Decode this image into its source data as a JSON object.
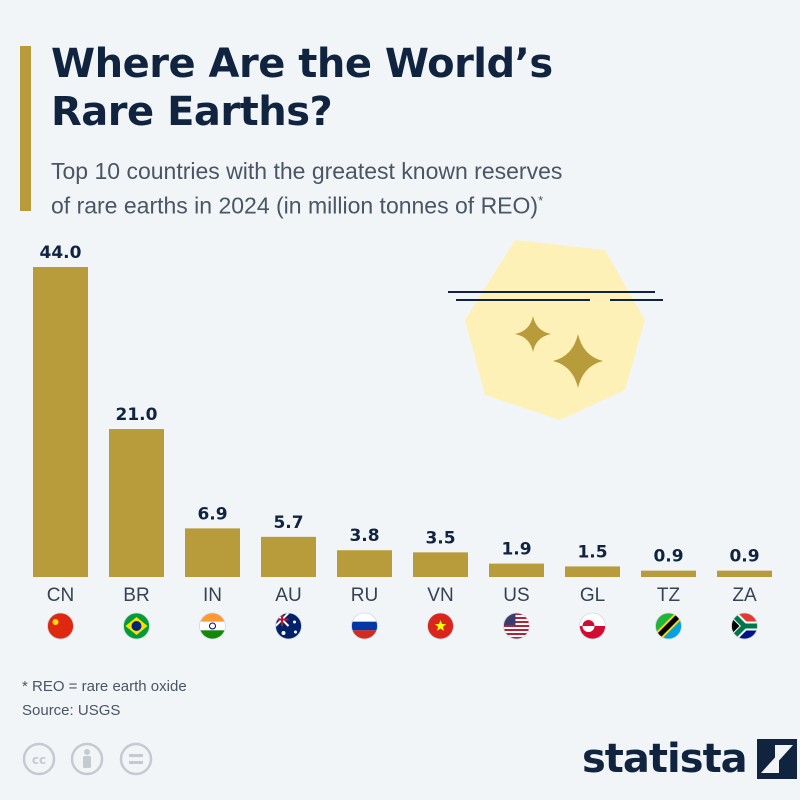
{
  "title_lines": [
    "Where Are the World’s",
    "Rare Earths?"
  ],
  "subtitle_lines": [
    "Top 10 countries with the greatest known reserves",
    "of rare earths in 2024 (in million tonnes of REO)"
  ],
  "subtitle_mark": "*",
  "colors": {
    "bar": "#b89b3a",
    "title": "#10243f",
    "background": "#f2f5f8",
    "illustration": "#fdf1b8"
  },
  "chart_data": {
    "type": "bar",
    "title": "",
    "xlabel": "",
    "ylabel": "",
    "categories": [
      "CN",
      "BR",
      "IN",
      "AU",
      "RU",
      "VN",
      "US",
      "GL",
      "TZ",
      "ZA"
    ],
    "values": [
      44.0,
      21.0,
      6.9,
      5.7,
      3.8,
      3.5,
      1.9,
      1.5,
      0.9,
      0.9
    ],
    "value_labels": [
      "44.0",
      "21.0",
      "6.9",
      "5.7",
      "3.8",
      "3.5",
      "1.9",
      "1.5",
      "0.9",
      "0.9"
    ],
    "ylim": [
      0,
      44
    ],
    "grid": false,
    "legend": "none",
    "flags": [
      "china-flag-icon",
      "brazil-flag-icon",
      "india-flag-icon",
      "australia-flag-icon",
      "russia-flag-icon",
      "vietnam-flag-icon",
      "usa-flag-icon",
      "greenland-flag-icon",
      "tanzania-flag-icon",
      "south-africa-flag-icon"
    ]
  },
  "footnote": {
    "note": "* REO = rare earth oxide",
    "source": "Source: USGS"
  },
  "logo": {
    "text": "statista"
  },
  "license_icons": [
    "creative-commons-icon",
    "attribution-icon",
    "no-derivatives-icon"
  ]
}
